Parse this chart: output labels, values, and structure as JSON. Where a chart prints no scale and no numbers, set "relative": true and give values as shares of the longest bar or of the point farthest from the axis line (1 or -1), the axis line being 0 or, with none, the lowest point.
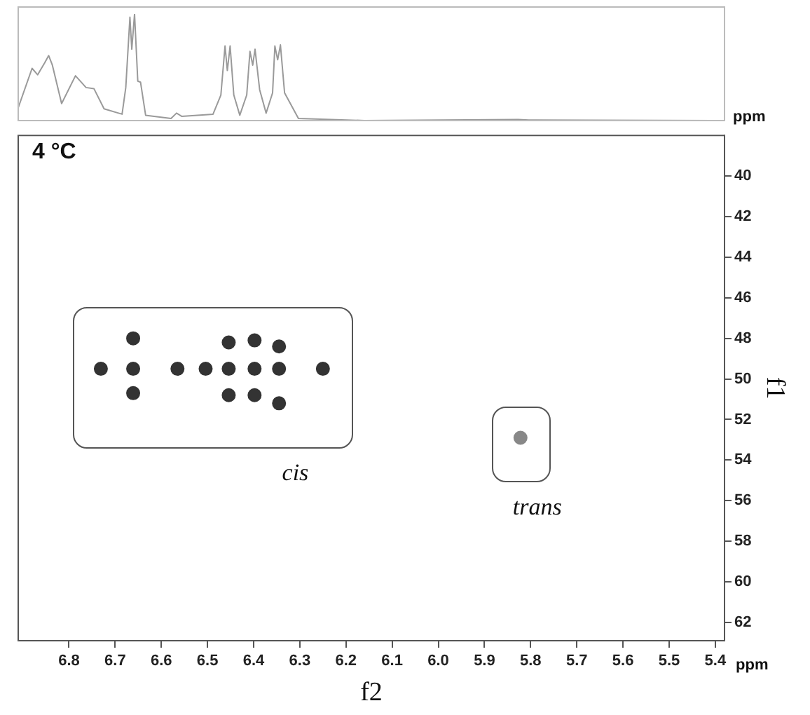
{
  "chart_data": [
    {
      "type": "line",
      "relative": true,
      "xlim": [
        6.91,
        5.38
      ],
      "grid": false,
      "legend": false,
      "marker": "none",
      "annotations": [
        "ppm"
      ],
      "series": [
        {
          "color": "#9a9a9a",
          "x": [
            6.91,
            6.88,
            6.868,
            6.853,
            6.844,
            6.836,
            6.816,
            6.786,
            6.763,
            6.746,
            6.724,
            6.685,
            6.677,
            6.668,
            6.664,
            6.658,
            6.651,
            6.645,
            6.634,
            6.579,
            6.567,
            6.556,
            6.488,
            6.471,
            6.462,
            6.457,
            6.451,
            6.443,
            6.43,
            6.415,
            6.408,
            6.402,
            6.397,
            6.387,
            6.373,
            6.359,
            6.354,
            6.348,
            6.342,
            6.333,
            6.303,
            6.16,
            5.827,
            5.804,
            5.38
          ],
          "values": [
            0.12,
            0.49,
            0.43,
            0.54,
            0.61,
            0.52,
            0.16,
            0.42,
            0.31,
            0.3,
            0.11,
            0.06,
            0.31,
            0.97,
            0.67,
            1,
            0.37,
            0.36,
            0.05,
            0.02,
            0.07,
            0.04,
            0.06,
            0.24,
            0.7,
            0.47,
            0.7,
            0.24,
            0.05,
            0.24,
            0.65,
            0.52,
            0.67,
            0.29,
            0.07,
            0.26,
            0.7,
            0.57,
            0.71,
            0.26,
            0.02,
            0,
            0.01,
            0.005,
            0
          ]
        }
      ]
    },
    {
      "type": "scatter",
      "xlabel": "f2",
      "ylabel": "f1",
      "xlim": [
        6.91,
        5.38
      ],
      "ylim": [
        62.9,
        38.0
      ],
      "xticks": [
        6.8,
        6.7,
        6.6,
        6.5,
        6.4,
        6.3,
        6.2,
        6.1,
        {
          "value": 6.0,
          "label": "6.0"
        },
        5.9,
        5.8,
        5.7,
        5.6,
        5.5,
        5.4
      ],
      "yticks": [
        40,
        42,
        44,
        46,
        48,
        50,
        52,
        54,
        56,
        58,
        60,
        62
      ],
      "grid": false,
      "legend": false,
      "marker": "circle",
      "annotations": [
        "4 °C",
        "ppm"
      ],
      "series": [
        {
          "name": "cis",
          "color": "#333333",
          "x": [
            6.731,
            6.661,
            6.565,
            6.504,
            6.454,
            6.398,
            6.345,
            6.25,
            6.661,
            6.661,
            6.454,
            6.454,
            6.398,
            6.398,
            6.345,
            6.345
          ],
          "values": [
            49.5,
            49.5,
            49.5,
            49.5,
            49.5,
            49.5,
            49.5,
            49.5,
            48.0,
            50.7,
            48.2,
            50.8,
            48.1,
            50.8,
            48.4,
            51.2
          ]
        },
        {
          "name": "trans",
          "color": "#888888",
          "x": [
            5.822
          ],
          "values": [
            52.9
          ]
        }
      ]
    }
  ]
}
